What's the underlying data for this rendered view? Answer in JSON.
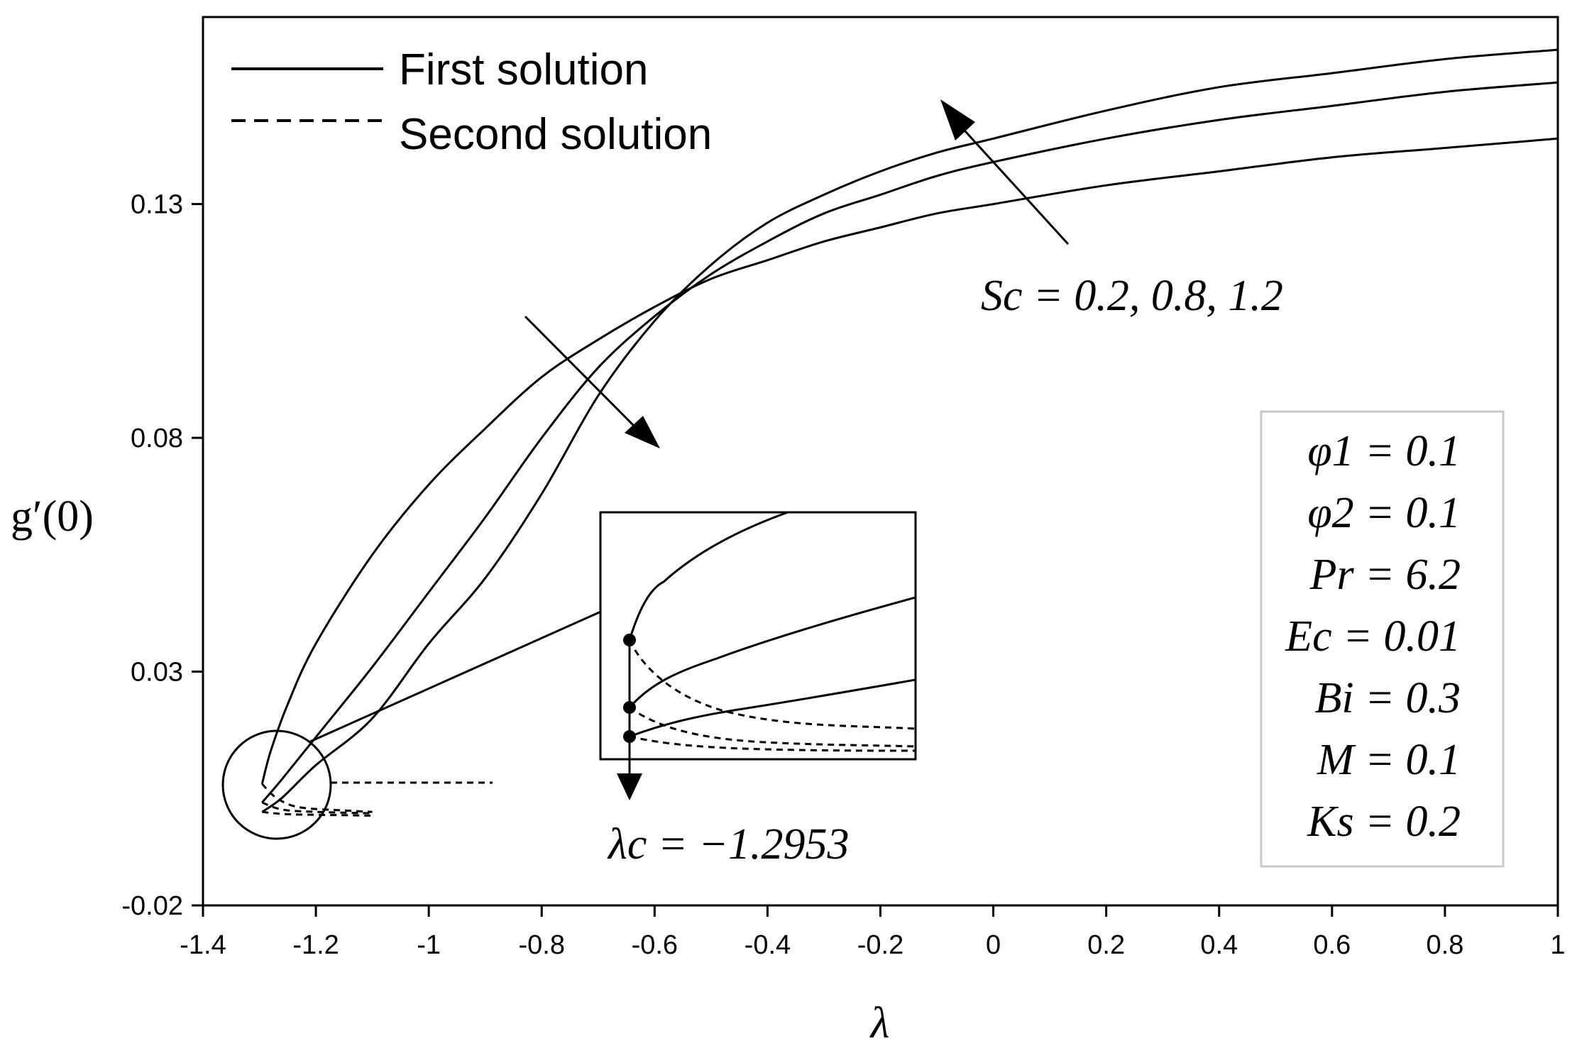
{
  "chart_data": {
    "type": "line",
    "xlabel": "λ",
    "ylabel": "g′(0)",
    "xlim": [
      -1.4,
      1.0
    ],
    "ylim": [
      -0.02,
      0.17
    ],
    "x_ticks": [
      "-1.4",
      "-1.2",
      "-1",
      "-0.8",
      "-0.6",
      "-0.4",
      "-0.2",
      "0",
      "0.2",
      "0.4",
      "0.6",
      "0.8",
      "1"
    ],
    "y_ticks": [
      "0.13",
      "0.08",
      "0.03",
      "-0.02"
    ],
    "legend": {
      "placement": "top-left",
      "entries": [
        {
          "label": "First solution",
          "style": "solid"
        },
        {
          "label": "Second solution",
          "style": "dashed"
        }
      ]
    },
    "series": [
      {
        "style": "solid",
        "points": [
          [
            -1.2953,
            0.006
          ],
          [
            -1.28,
            0.013
          ],
          [
            -1.25,
            0.023
          ],
          [
            -1.2,
            0.036
          ],
          [
            -1.1,
            0.055
          ],
          [
            -1.0,
            0.07
          ],
          [
            -0.9,
            0.082
          ],
          [
            -0.8,
            0.093
          ],
          [
            -0.7,
            0.101
          ],
          [
            -0.6,
            0.108
          ],
          [
            -0.5,
            0.114
          ],
          [
            -0.4,
            0.118
          ],
          [
            -0.3,
            0.122
          ],
          [
            -0.2,
            0.125
          ],
          [
            -0.1,
            0.128
          ],
          [
            0.0,
            0.13
          ],
          [
            0.2,
            0.134
          ],
          [
            0.4,
            0.137
          ],
          [
            0.6,
            0.14
          ],
          [
            0.8,
            0.142
          ],
          [
            1.0,
            0.144
          ]
        ]
      },
      {
        "style": "solid",
        "points": [
          [
            -1.2953,
            0.002
          ],
          [
            -1.26,
            0.007
          ],
          [
            -1.2,
            0.016
          ],
          [
            -1.1,
            0.031
          ],
          [
            -1.0,
            0.047
          ],
          [
            -0.9,
            0.063
          ],
          [
            -0.8,
            0.08
          ],
          [
            -0.7,
            0.095
          ],
          [
            -0.6,
            0.106
          ],
          [
            -0.5,
            0.115
          ],
          [
            -0.4,
            0.122
          ],
          [
            -0.3,
            0.128
          ],
          [
            -0.2,
            0.132
          ],
          [
            -0.1,
            0.136
          ],
          [
            0.0,
            0.139
          ],
          [
            0.2,
            0.144
          ],
          [
            0.4,
            0.148
          ],
          [
            0.6,
            0.151
          ],
          [
            0.8,
            0.154
          ],
          [
            1.0,
            0.156
          ]
        ]
      },
      {
        "style": "solid",
        "points": [
          [
            -1.2953,
            0.0
          ],
          [
            -1.26,
            0.003
          ],
          [
            -1.2,
            0.01
          ],
          [
            -1.1,
            0.02
          ],
          [
            -1.0,
            0.036
          ],
          [
            -0.9,
            0.05
          ],
          [
            -0.8,
            0.068
          ],
          [
            -0.7,
            0.089
          ],
          [
            -0.6,
            0.105
          ],
          [
            -0.5,
            0.117
          ],
          [
            -0.4,
            0.126
          ],
          [
            -0.3,
            0.132
          ],
          [
            -0.2,
            0.137
          ],
          [
            -0.1,
            0.141
          ],
          [
            0.0,
            0.144
          ],
          [
            0.2,
            0.15
          ],
          [
            0.4,
            0.155
          ],
          [
            0.6,
            0.158
          ],
          [
            0.8,
            0.161
          ],
          [
            1.0,
            0.163
          ]
        ]
      },
      {
        "style": "dashed",
        "points": [
          [
            -1.2953,
            0.006
          ],
          [
            -1.27,
            0.003
          ],
          [
            -1.23,
            0.001
          ],
          [
            -1.15,
            0.0003
          ],
          [
            -1.1,
            0.0
          ]
        ]
      },
      {
        "style": "dashed",
        "points": [
          [
            -1.2953,
            0.002
          ],
          [
            -1.26,
            0.0005
          ],
          [
            -1.2,
            0.0
          ],
          [
            -1.1,
            -0.0003
          ]
        ]
      },
      {
        "style": "dashed",
        "points": [
          [
            -1.2953,
            0.0
          ],
          [
            -1.25,
            -0.0005
          ],
          [
            -1.15,
            -0.0007
          ],
          [
            -1.1,
            -0.0008
          ]
        ]
      }
    ],
    "annotations": {
      "sc_label": "Sc = 0.2, 0.8, 1.2",
      "lambda_c_label": "λc = −1.2953",
      "params": [
        "φ1 = 0.1",
        "φ2 = 0.1",
        "Pr = 6.2",
        "Ec = 0.01",
        "Bi = 0.3",
        "M = 0.1",
        "Ks = 0.2"
      ]
    }
  }
}
